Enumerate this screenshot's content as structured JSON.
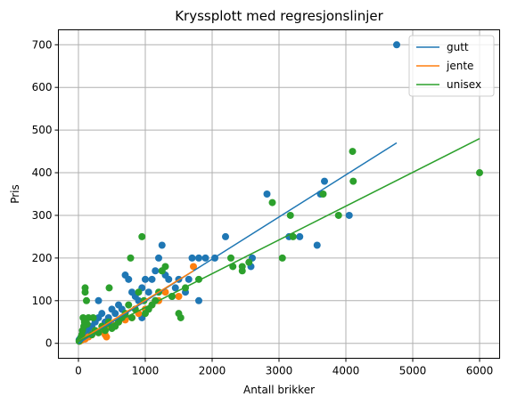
{
  "chart_data": {
    "type": "scatter",
    "title": "Kryssplott med regresjonslinjer",
    "xlabel": "Antall brikker",
    "ylabel": "Pris",
    "xlim": [
      -300,
      6300
    ],
    "ylim": [
      -35,
      735
    ],
    "xticks": [
      0,
      1000,
      2000,
      3000,
      4000,
      5000,
      6000
    ],
    "yticks": [
      0,
      100,
      200,
      300,
      400,
      500,
      600,
      700
    ],
    "grid": true,
    "legend_position": "top-right",
    "series": [
      {
        "name": "gutt",
        "color": "#1f77b4",
        "points": [
          [
            4760,
            700
          ],
          [
            4050,
            300
          ],
          [
            3680,
            380
          ],
          [
            3570,
            230
          ],
          [
            3620,
            350
          ],
          [
            2820,
            350
          ],
          [
            3310,
            250
          ],
          [
            3150,
            250
          ],
          [
            2580,
            180
          ],
          [
            2600,
            200
          ],
          [
            2200,
            250
          ],
          [
            2040,
            200
          ],
          [
            1900,
            200
          ],
          [
            1800,
            200
          ],
          [
            1700,
            200
          ],
          [
            1800,
            100
          ],
          [
            1650,
            150
          ],
          [
            1600,
            120
          ],
          [
            1500,
            150
          ],
          [
            1450,
            130
          ],
          [
            1400,
            110
          ],
          [
            1350,
            150
          ],
          [
            1300,
            160
          ],
          [
            1250,
            170
          ],
          [
            1250,
            230
          ],
          [
            1200,
            200
          ],
          [
            1150,
            170
          ],
          [
            1100,
            150
          ],
          [
            1050,
            120
          ],
          [
            1000,
            150
          ],
          [
            950,
            130
          ],
          [
            900,
            100
          ],
          [
            850,
            110
          ],
          [
            800,
            120
          ],
          [
            750,
            150
          ],
          [
            700,
            160
          ],
          [
            650,
            80
          ],
          [
            600,
            90
          ],
          [
            550,
            70
          ],
          [
            500,
            80
          ],
          [
            450,
            60
          ],
          [
            400,
            50
          ],
          [
            350,
            70
          ],
          [
            300,
            60
          ],
          [
            300,
            100
          ],
          [
            250,
            50
          ],
          [
            200,
            40
          ],
          [
            150,
            30
          ],
          [
            120,
            40
          ],
          [
            100,
            30
          ],
          [
            80,
            20
          ],
          [
            60,
            20
          ],
          [
            40,
            15
          ],
          [
            20,
            10
          ],
          [
            10,
            8
          ],
          [
            950,
            60
          ],
          [
            1150,
            100
          ],
          [
            700,
            60
          ]
        ],
        "regression": [
          [
            0,
            0
          ],
          [
            4760,
            470
          ]
        ]
      },
      {
        "name": "jente",
        "color": "#ff7f0e",
        "points": [
          [
            1720,
            180
          ],
          [
            1500,
            110
          ],
          [
            1300,
            120
          ],
          [
            1200,
            100
          ],
          [
            1100,
            90
          ],
          [
            1000,
            80
          ],
          [
            900,
            70
          ],
          [
            800,
            60
          ],
          [
            700,
            55
          ],
          [
            600,
            50
          ],
          [
            500,
            45
          ],
          [
            450,
            40
          ],
          [
            400,
            20
          ],
          [
            420,
            15
          ],
          [
            350,
            30
          ],
          [
            300,
            25
          ],
          [
            250,
            30
          ],
          [
            200,
            20
          ],
          [
            150,
            15
          ],
          [
            100,
            10
          ],
          [
            80,
            12
          ],
          [
            50,
            8
          ],
          [
            30,
            6
          ],
          [
            20,
            5
          ]
        ],
        "regression": [
          [
            0,
            5
          ],
          [
            1720,
            170
          ]
        ]
      },
      {
        "name": "unisex",
        "color": "#2ca02c",
        "points": [
          [
            6000,
            400
          ],
          [
            4100,
            450
          ],
          [
            4110,
            380
          ],
          [
            3890,
            300
          ],
          [
            3660,
            350
          ],
          [
            3170,
            300
          ],
          [
            3210,
            250
          ],
          [
            3050,
            200
          ],
          [
            2900,
            330
          ],
          [
            2550,
            190
          ],
          [
            2450,
            170
          ],
          [
            2450,
            180
          ],
          [
            2310,
            180
          ],
          [
            2280,
            200
          ],
          [
            1800,
            150
          ],
          [
            1530,
            60
          ],
          [
            1500,
            70
          ],
          [
            1300,
            180
          ],
          [
            1250,
            170
          ],
          [
            1200,
            120
          ],
          [
            1150,
            100
          ],
          [
            1100,
            90
          ],
          [
            1050,
            80
          ],
          [
            1000,
            70
          ],
          [
            950,
            250
          ],
          [
            980,
            100
          ],
          [
            900,
            120
          ],
          [
            850,
            80
          ],
          [
            800,
            60
          ],
          [
            780,
            200
          ],
          [
            750,
            90
          ],
          [
            700,
            70
          ],
          [
            650,
            60
          ],
          [
            600,
            50
          ],
          [
            550,
            40
          ],
          [
            500,
            35
          ],
          [
            460,
            130
          ],
          [
            450,
            50
          ],
          [
            400,
            30
          ],
          [
            350,
            40
          ],
          [
            300,
            25
          ],
          [
            250,
            30
          ],
          [
            220,
            60
          ],
          [
            200,
            20
          ],
          [
            150,
            60
          ],
          [
            130,
            45
          ],
          [
            120,
            100
          ],
          [
            100,
            130
          ],
          [
            100,
            120
          ],
          [
            90,
            50
          ],
          [
            80,
            40
          ],
          [
            70,
            60
          ],
          [
            60,
            30
          ],
          [
            50,
            20
          ],
          [
            40,
            15
          ],
          [
            30,
            10
          ],
          [
            20,
            8
          ],
          [
            10,
            5
          ],
          [
            1400,
            110
          ],
          [
            1600,
            130
          ]
        ],
        "regression": [
          [
            0,
            5
          ],
          [
            6000,
            480
          ]
        ]
      }
    ]
  }
}
